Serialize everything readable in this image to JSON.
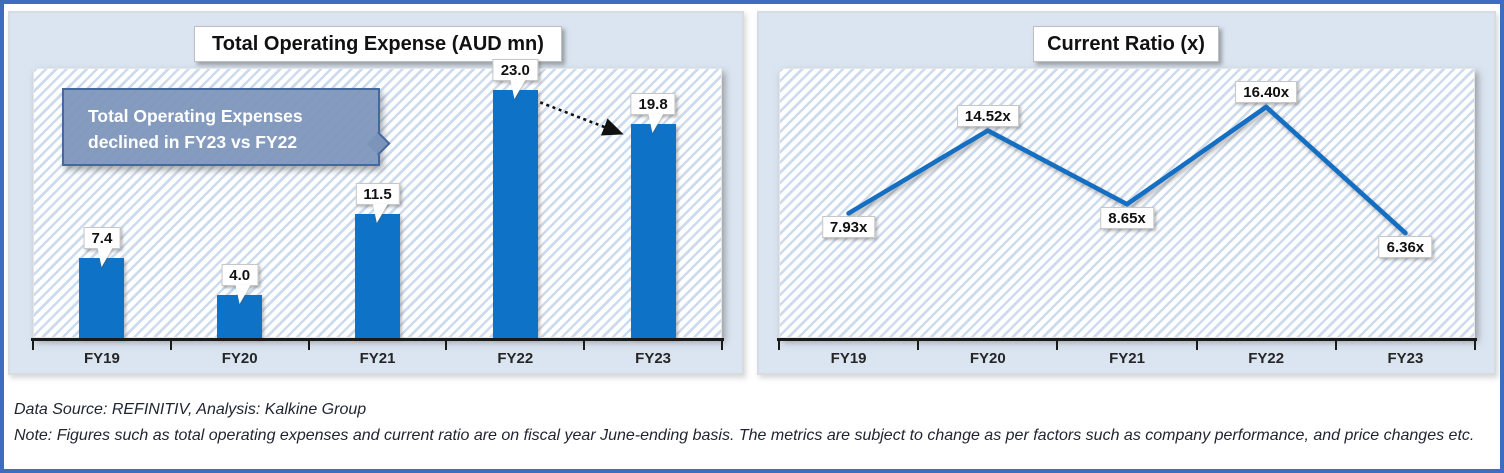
{
  "page": {
    "outer_border_color": "#3d6cc0",
    "panel_background": "#dbe5f1",
    "hatch_stripe_color": "#cddbee",
    "callout_background": "#7c94ba",
    "callout_border": "#44699f"
  },
  "footer": {
    "source_line": "Data Source: REFINITIV, Analysis: Kalkine Group",
    "note_line": "Note: Figures such as total operating expenses and current ratio are on fiscal year June-ending basis. The metrics are subject to change as per factors such as company performance, and price changes etc."
  },
  "annotation": {
    "text": "Total Operating Expenses declined in FY23 vs FY22",
    "arrow": "dashed arrow from FY22 bar top to FY23 bar top"
  },
  "chart_data": [
    {
      "type": "bar",
      "title": "Total Operating Expense (AUD mn)",
      "categories": [
        "FY19",
        "FY20",
        "FY21",
        "FY22",
        "FY23"
      ],
      "values": [
        7.4,
        4.0,
        11.5,
        23.0,
        19.8
      ],
      "data_labels": [
        "7.4",
        "4.0",
        "11.5",
        "23.0",
        "19.8"
      ],
      "ylim": [
        0,
        25
      ],
      "grid": false,
      "legend": "none",
      "bar_color": "#0e72c6",
      "xlabel": "",
      "ylabel": ""
    },
    {
      "type": "line",
      "title": "Current Ratio (x)",
      "categories": [
        "FY19",
        "FY20",
        "FY21",
        "FY22",
        "FY23"
      ],
      "values": [
        7.93,
        14.52,
        8.65,
        16.4,
        6.36
      ],
      "data_labels": [
        "7.93x",
        "14.52x",
        "8.65x",
        "16.40x",
        "6.36x"
      ],
      "label_positions": [
        "below",
        "above",
        "below",
        "above",
        "below"
      ],
      "ylim": [
        -2,
        19.5
      ],
      "grid": false,
      "legend": "none",
      "line_color": "#146fc3",
      "xlabel": "",
      "ylabel": ""
    }
  ]
}
